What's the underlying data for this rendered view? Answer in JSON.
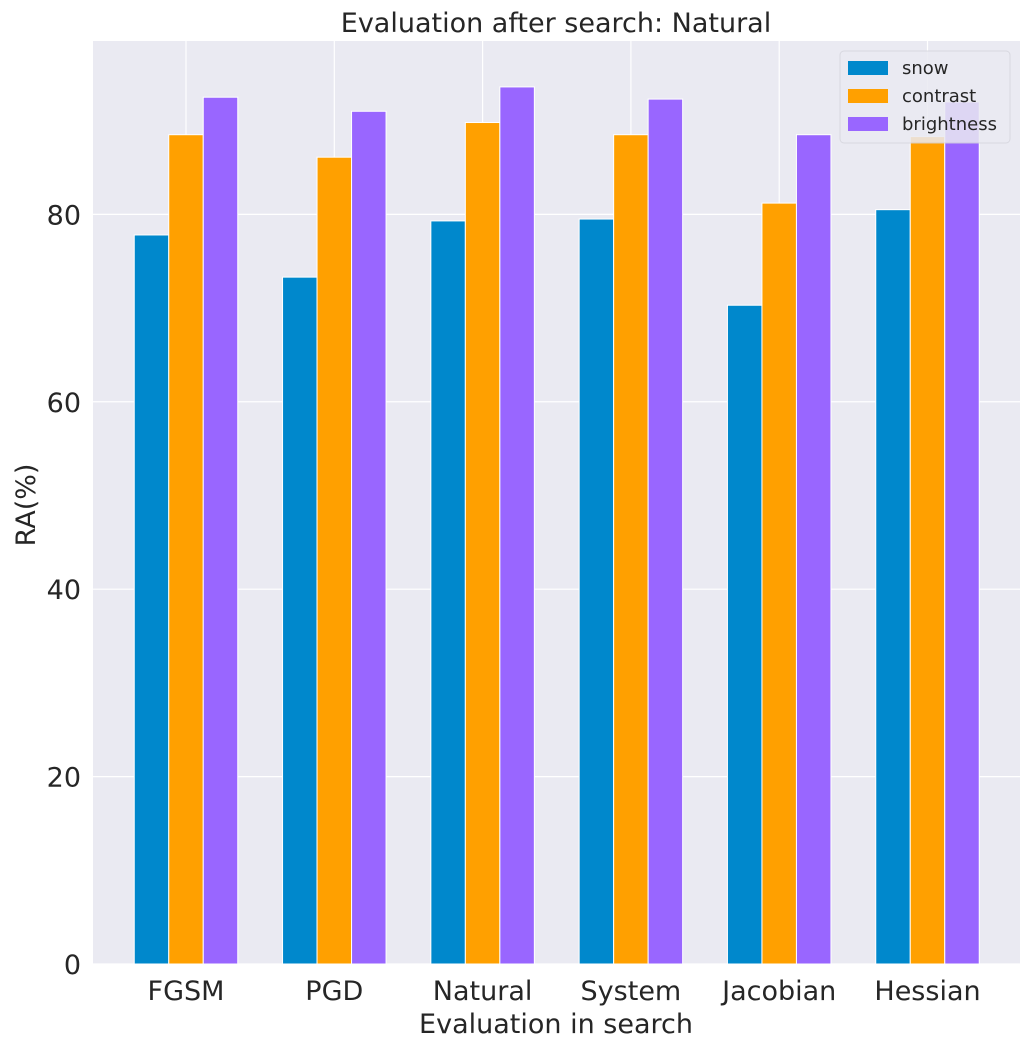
{
  "chart_data": {
    "type": "bar",
    "title": "Evaluation after search: Natural",
    "xlabel": "Evaluation in search",
    "ylabel": "RA(%)",
    "categories": [
      "FGSM",
      "PGD",
      "Natural",
      "System",
      "Jacobian",
      "Hessian"
    ],
    "series": [
      {
        "name": "snow",
        "color": "#0088cc",
        "values": [
          77.8,
          73.3,
          79.3,
          79.5,
          70.3,
          80.5
        ]
      },
      {
        "name": "contrast",
        "color": "#ffa000",
        "values": [
          88.5,
          86.1,
          89.8,
          88.5,
          81.2,
          88.3
        ]
      },
      {
        "name": "brightness",
        "color": "#9966ff",
        "values": [
          92.5,
          91.0,
          93.6,
          92.3,
          88.5,
          92.0
        ]
      }
    ],
    "ylim": [
      0,
      98.5
    ],
    "yticks": [
      0,
      20,
      40,
      60,
      80
    ],
    "grid": true,
    "legend_position": "top-right"
  }
}
